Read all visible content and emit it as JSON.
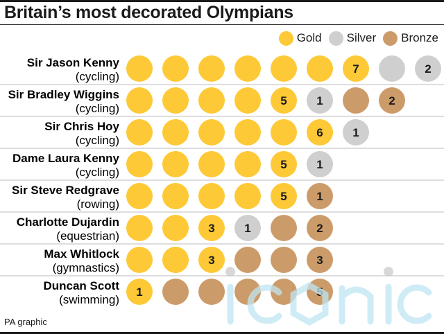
{
  "title": "Britain’s most decorated Olympians",
  "legend": [
    {
      "label": "Gold",
      "color": "#fdc936"
    },
    {
      "label": "Silver",
      "color": "#cfcfcf"
    },
    {
      "label": "Bronze",
      "color": "#cc9b6a"
    }
  ],
  "source": "PA graphic",
  "watermark": "iconic",
  "chart_data": {
    "type": "table",
    "title": "Britain’s most decorated Olympians",
    "series": [
      {
        "name": "Gold",
        "color": "#fdc936"
      },
      {
        "name": "Silver",
        "color": "#cfcfcf"
      },
      {
        "name": "Bronze",
        "color": "#cc9b6a"
      }
    ],
    "rows": [
      {
        "name": "Sir Jason Kenny",
        "sport": "(cycling)",
        "gold": 7,
        "silver": 2,
        "bronze": 0
      },
      {
        "name": "Sir Bradley Wiggins",
        "sport": "(cycling)",
        "gold": 5,
        "silver": 1,
        "bronze": 2
      },
      {
        "name": "Sir Chris Hoy",
        "sport": "(cycling)",
        "gold": 6,
        "silver": 1,
        "bronze": 0
      },
      {
        "name": "Dame Laura Kenny",
        "sport": "(cycling)",
        "gold": 5,
        "silver": 1,
        "bronze": 0
      },
      {
        "name": "Sir Steve Redgrave",
        "sport": "(rowing)",
        "gold": 5,
        "silver": 0,
        "bronze": 1
      },
      {
        "name": "Charlotte Dujardin",
        "sport": "(equestrian)",
        "gold": 3,
        "silver": 1,
        "bronze": 2
      },
      {
        "name": "Max Whitlock",
        "sport": "(gymnastics)",
        "gold": 3,
        "silver": 0,
        "bronze": 3
      },
      {
        "name": "Duncan Scott",
        "sport": "(swimming)",
        "gold": 1,
        "silver": 0,
        "bronze": 5
      }
    ]
  }
}
